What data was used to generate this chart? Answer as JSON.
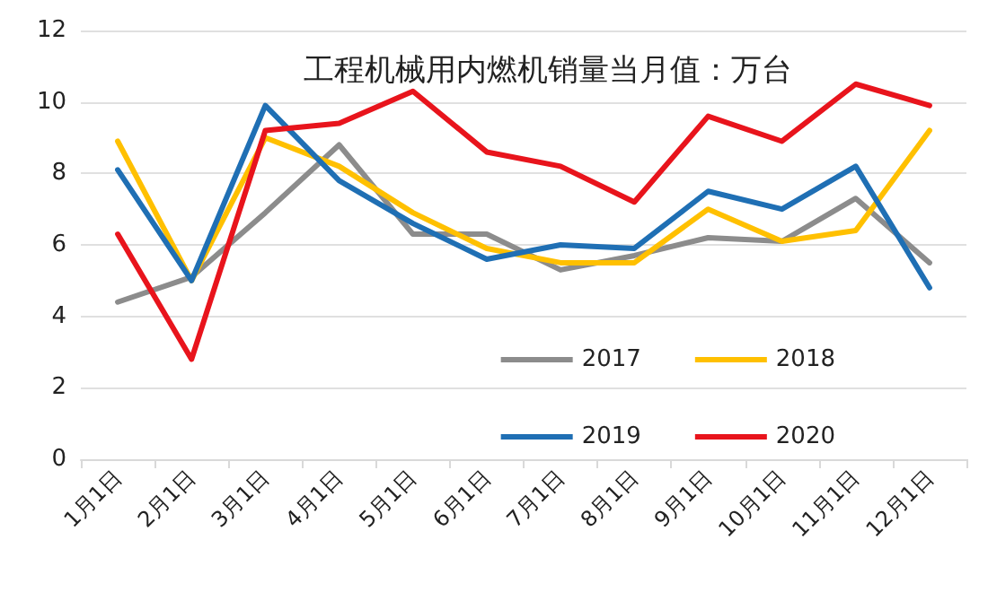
{
  "chart_data": {
    "type": "line",
    "title": "工程机械用内燃机销量当月值：万台",
    "categories": [
      "1月1日",
      "2月1日",
      "3月1日",
      "4月1日",
      "5月1日",
      "6月1日",
      "7月1日",
      "8月1日",
      "9月1日",
      "10月1日",
      "11月1日",
      "12月1日"
    ],
    "series": [
      {
        "name": "2017",
        "color": "#8c8c8c",
        "values": [
          4.4,
          5.1,
          6.9,
          8.8,
          6.3,
          6.3,
          5.3,
          5.7,
          6.2,
          6.1,
          7.3,
          5.5
        ]
      },
      {
        "name": "2018",
        "color": "#ffc000",
        "values": [
          8.9,
          5.0,
          9.0,
          8.2,
          6.9,
          5.9,
          5.5,
          5.5,
          7.0,
          6.1,
          6.4,
          9.2
        ]
      },
      {
        "name": "2019",
        "color": "#1f6fb4",
        "values": [
          8.1,
          5.0,
          9.9,
          7.8,
          6.6,
          5.6,
          6.0,
          5.9,
          7.5,
          7.0,
          8.2,
          4.8
        ]
      },
      {
        "name": "2020",
        "color": "#e8141c",
        "values": [
          6.3,
          2.8,
          9.2,
          9.4,
          10.3,
          8.6,
          8.2,
          7.2,
          9.6,
          8.9,
          10.5,
          9.9
        ]
      }
    ],
    "ylim": [
      0,
      12
    ],
    "yticks": [
      0,
      2,
      4,
      6,
      8,
      10,
      12
    ],
    "grid": "y",
    "legend": "bottom right",
    "marker": "none",
    "line_style": "solid"
  }
}
